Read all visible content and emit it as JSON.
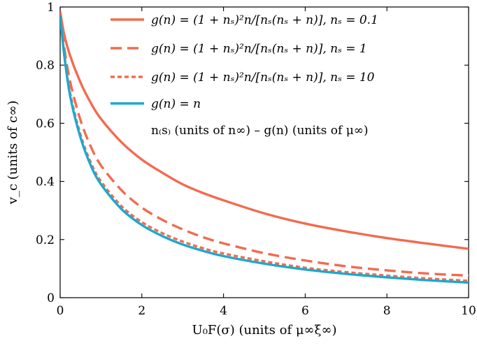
{
  "chart_data": {
    "type": "line",
    "xlabel": "U₀F(σ) (units of μ∞ξ∞)",
    "ylabel": "v_c (units of c∞)",
    "xlim": [
      0,
      10
    ],
    "ylim": [
      0,
      1
    ],
    "xticks": [
      0,
      2,
      4,
      6,
      8,
      10
    ],
    "yticks": [
      0,
      0.2,
      0.4,
      0.6,
      0.8,
      1
    ],
    "ytick_labels": [
      "0",
      "0.2",
      "0.4",
      "0.6",
      "0.8",
      "1"
    ],
    "xtick_labels": [
      "0",
      "2",
      "4",
      "6",
      "8",
      "10"
    ],
    "grid": false,
    "legend_position": "top-right",
    "legend_note": "n₍s₎ (units of n∞) – g(n) (units of μ∞)",
    "series": [
      {
        "name": "g(n) = (1 + nₛ)²n/[nₛ(nₛ + n)], nₛ = 0.1",
        "color": "#f26b4f",
        "dash": "solid",
        "x": [
          0,
          0.1,
          0.25,
          0.5,
          0.75,
          1,
          1.5,
          2,
          2.5,
          3,
          3.5,
          4,
          5,
          6,
          7,
          8,
          9,
          10
        ],
        "y": [
          0.985,
          0.905,
          0.83,
          0.74,
          0.67,
          0.615,
          0.535,
          0.475,
          0.43,
          0.39,
          0.36,
          0.335,
          0.29,
          0.255,
          0.228,
          0.205,
          0.186,
          0.168
        ]
      },
      {
        "name": "g(n) = (1 + nₛ)²n/[nₛ(nₛ + n)], nₛ = 1",
        "color": "#f26b4f",
        "dash": "long",
        "x": [
          0,
          0.1,
          0.25,
          0.5,
          0.75,
          1,
          1.5,
          2,
          2.5,
          3,
          3.5,
          4,
          5,
          6,
          7,
          8,
          9,
          10
        ],
        "y": [
          0.975,
          0.86,
          0.74,
          0.61,
          0.52,
          0.455,
          0.37,
          0.31,
          0.268,
          0.235,
          0.208,
          0.187,
          0.153,
          0.128,
          0.108,
          0.094,
          0.083,
          0.076
        ]
      },
      {
        "name": "g(n) = (1 + nₛ)²n/[nₛ(nₛ + n)], nₛ = 10",
        "color": "#f26b4f",
        "dash": "short",
        "x": [
          0,
          0.1,
          0.25,
          0.5,
          0.75,
          1,
          1.5,
          2,
          2.5,
          3,
          3.5,
          4,
          5,
          6,
          7,
          8,
          9,
          10
        ],
        "y": [
          0.97,
          0.84,
          0.7,
          0.56,
          0.465,
          0.4,
          0.315,
          0.26,
          0.222,
          0.193,
          0.17,
          0.152,
          0.125,
          0.103,
          0.088,
          0.076,
          0.066,
          0.058
        ]
      },
      {
        "name": "g(n) = n",
        "color": "#1aa9cf",
        "dash": "solid",
        "x": [
          0,
          0.1,
          0.25,
          0.5,
          0.75,
          1,
          1.5,
          2,
          2.5,
          3,
          3.5,
          4,
          5,
          6,
          7,
          8,
          9,
          10
        ],
        "y": [
          0.97,
          0.835,
          0.69,
          0.55,
          0.455,
          0.39,
          0.305,
          0.25,
          0.212,
          0.183,
          0.161,
          0.143,
          0.117,
          0.097,
          0.082,
          0.07,
          0.06,
          0.052
        ]
      }
    ]
  }
}
